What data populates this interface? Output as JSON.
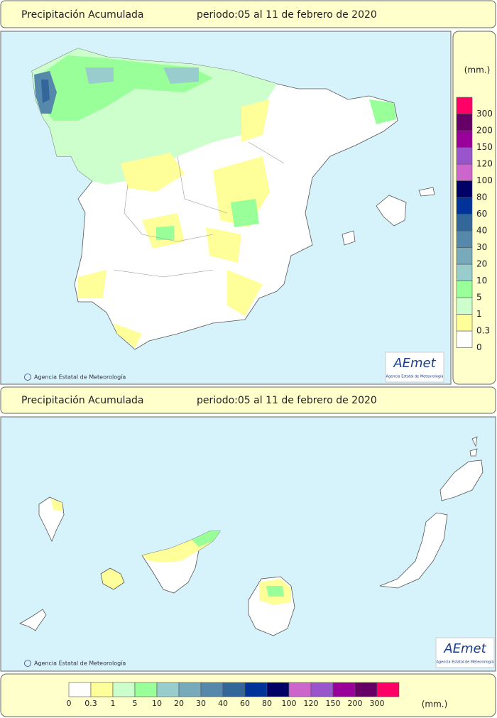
{
  "headers": [
    {
      "title": "Precipitación Acumulada",
      "period": "periodo:05 al 11 de febrero de 2020"
    },
    {
      "title": "Precipitación Acumulada",
      "period": "periodo:05 al 11 de febrero de 2020"
    }
  ],
  "credit": "Agencia Estatal de Meteorología",
  "logo": {
    "name": "AEmet",
    "subtitle": "Agencia Estatal de Meteorología"
  },
  "legend": {
    "unit": "(mm.)",
    "levels": [
      {
        "label": "0",
        "color": "#ffffff"
      },
      {
        "label": "0.3",
        "color": "#ffff99"
      },
      {
        "label": "1",
        "color": "#ccffcc"
      },
      {
        "label": "5",
        "color": "#99ff99"
      },
      {
        "label": "10",
        "color": "#99cccc"
      },
      {
        "label": "20",
        "color": "#77aabb"
      },
      {
        "label": "30",
        "color": "#5588aa"
      },
      {
        "label": "40",
        "color": "#336699"
      },
      {
        "label": "60",
        "color": "#003399"
      },
      {
        "label": "80",
        "color": "#000066"
      },
      {
        "label": "100",
        "color": "#cc66cc"
      },
      {
        "label": "120",
        "color": "#9955cc"
      },
      {
        "label": "150",
        "color": "#990099"
      },
      {
        "label": "200",
        "color": "#660066"
      },
      {
        "label": "300",
        "color": "#ff0066"
      }
    ]
  }
}
